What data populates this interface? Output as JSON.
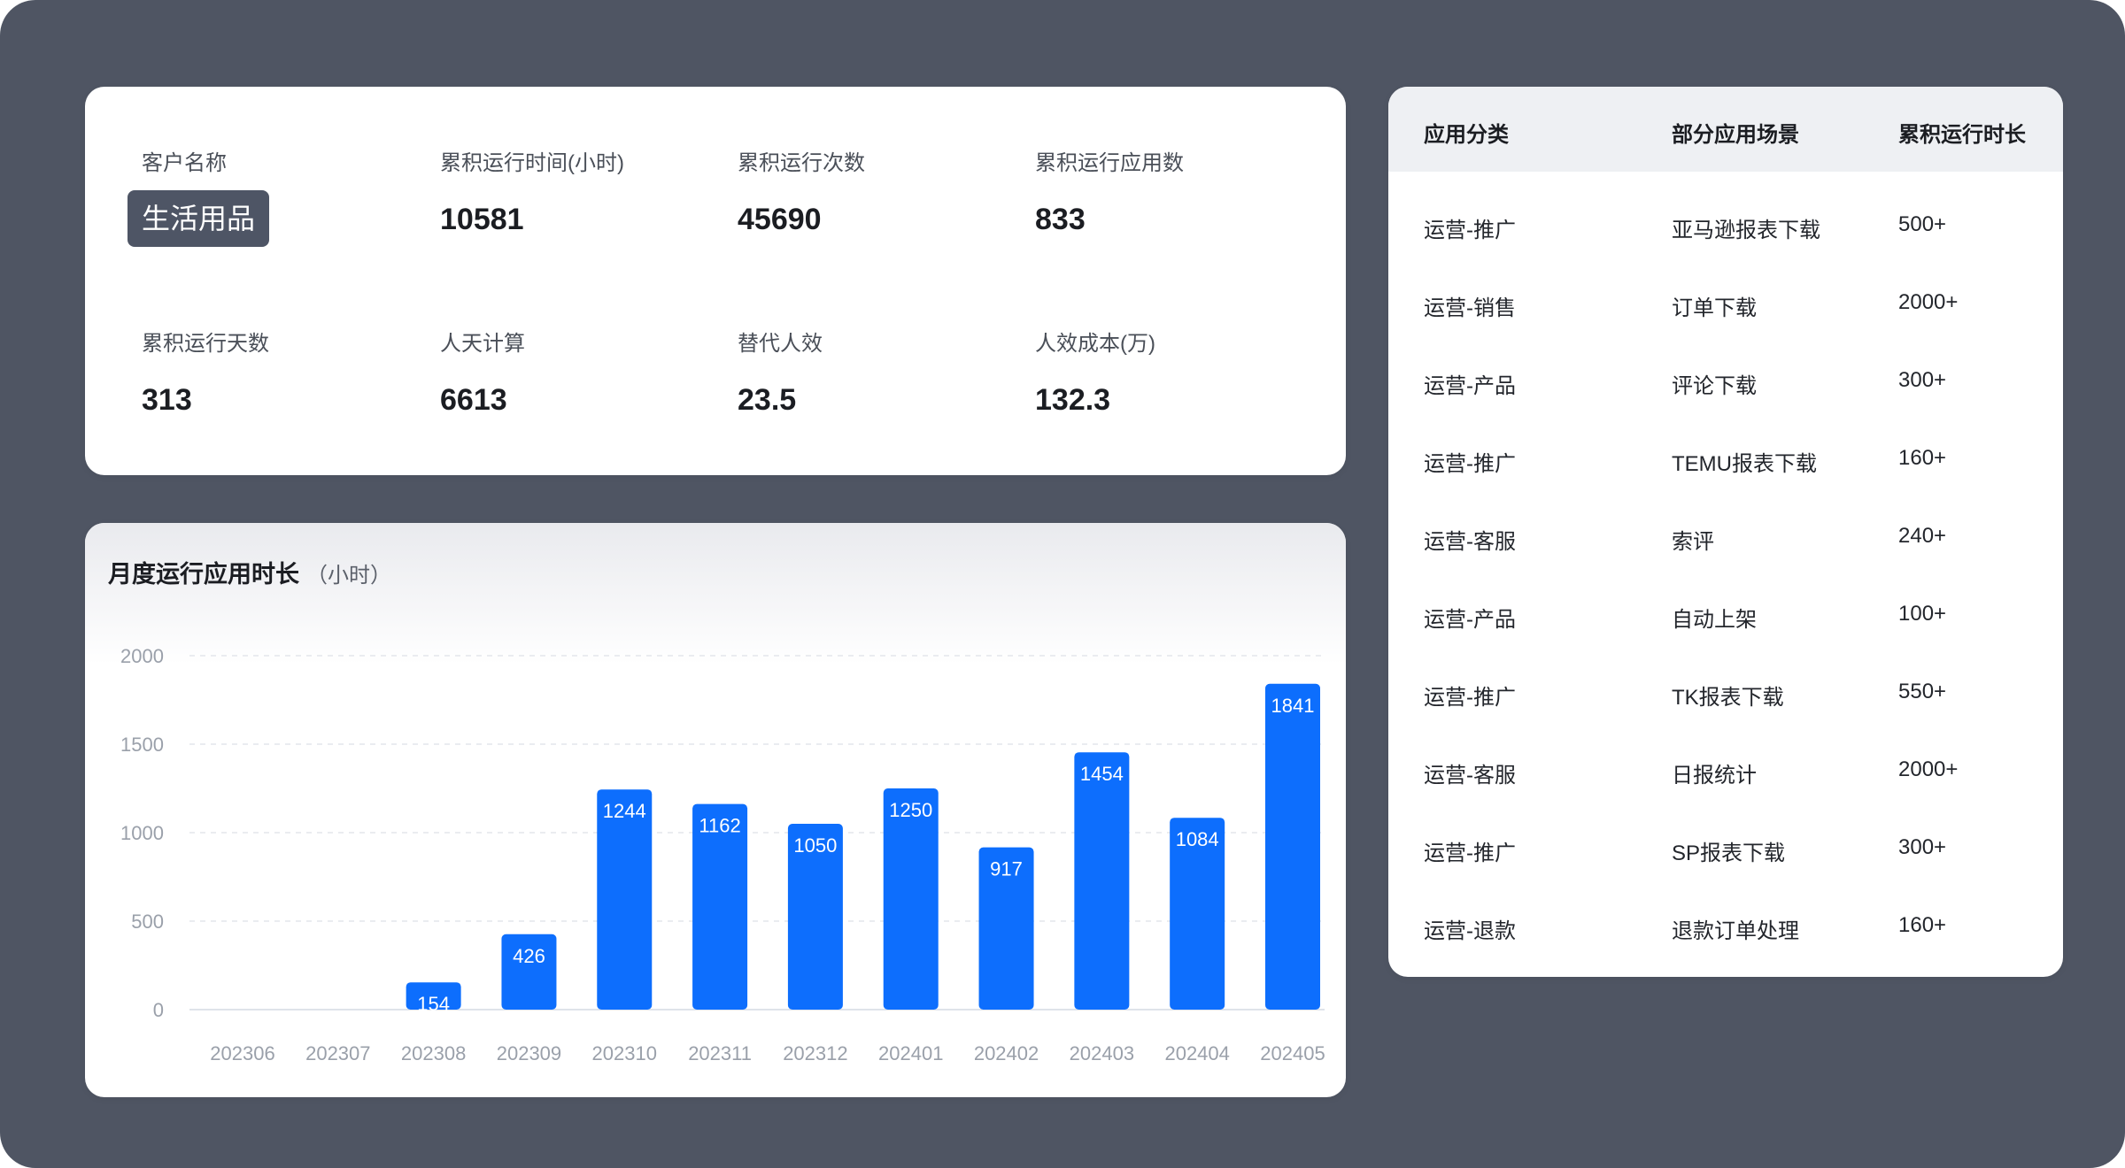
{
  "stats": {
    "customer_label": "客户名称",
    "customer_value": "生活用品",
    "items": [
      {
        "label": "累积运行时间(小时)",
        "value": "10581"
      },
      {
        "label": "累积运行次数",
        "value": "45690"
      },
      {
        "label": "累积运行应用数",
        "value": "833"
      },
      {
        "label": "累积运行天数",
        "value": "313"
      },
      {
        "label": "人天计算",
        "value": "6613"
      },
      {
        "label": "替代人效",
        "value": "23.5"
      },
      {
        "label": "人效成本(万)",
        "value": "132.3"
      }
    ]
  },
  "chart_title": "月度运行应用时长",
  "chart_unit": "（小时）",
  "chart_data": {
    "type": "bar",
    "categories": [
      "202306",
      "202307",
      "202308",
      "202309",
      "202310",
      "202311",
      "202312",
      "202401",
      "202402",
      "202403",
      "202404",
      "202405"
    ],
    "values": [
      0,
      0,
      154,
      426,
      1244,
      1162,
      1050,
      1250,
      917,
      1454,
      1084,
      1841
    ],
    "data_labels": [
      "",
      "",
      "154",
      "426",
      "1244",
      "1162",
      "1050",
      "1250",
      "917",
      "1454",
      "1084",
      "1841"
    ],
    "title": "月度运行应用时长",
    "ylim": [
      0,
      2000
    ],
    "yticks": [
      "0",
      "500",
      "1000",
      "1500",
      "2000"
    ],
    "grid": true,
    "bar_color": "#0d6efd"
  },
  "table": {
    "headers": [
      "应用分类",
      "部分应用场景",
      "累积运行时长"
    ],
    "rows": [
      [
        "运营-推广",
        "亚马逊报表下载",
        "500+"
      ],
      [
        "运营-销售",
        "订单下载",
        "2000+"
      ],
      [
        "运营-产品",
        "评论下载",
        "300+"
      ],
      [
        "运营-推广",
        "TEMU报表下载",
        "160+"
      ],
      [
        "运营-客服",
        "索评",
        "240+"
      ],
      [
        "运营-产品",
        "自动上架",
        "100+"
      ],
      [
        "运营-推广",
        "TK报表下载",
        "550+"
      ],
      [
        "运营-客服",
        "日报统计",
        "2000+"
      ],
      [
        "运营-推广",
        "SP报表下载",
        "300+"
      ],
      [
        "运营-退款",
        "退款订单处理",
        "160+"
      ]
    ]
  }
}
